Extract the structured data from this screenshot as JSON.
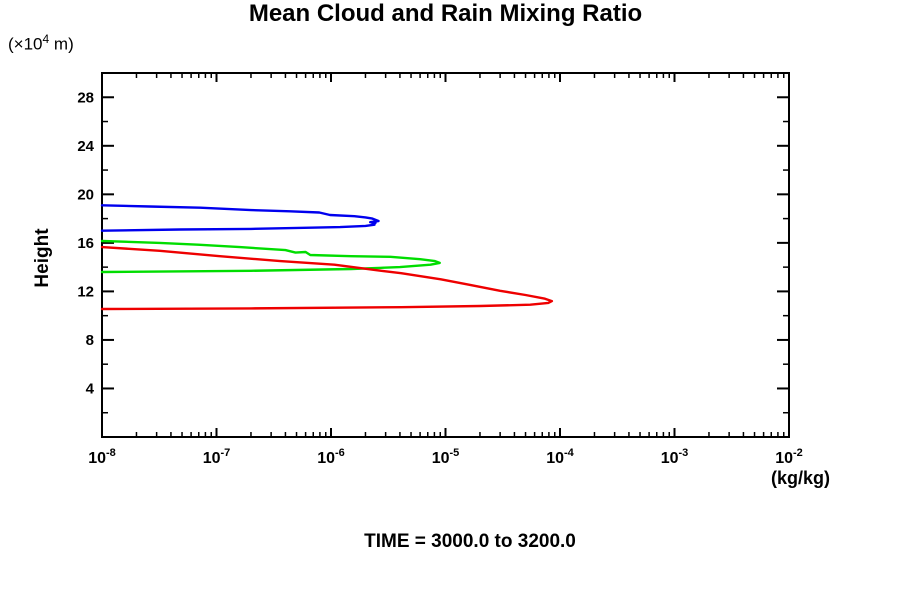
{
  "page": {
    "background": "#ffffff"
  },
  "title": "Mean Cloud and Rain Mixing Ratio",
  "labels": {
    "y_unit_prefix": "(×10",
    "y_unit_sup": "4",
    "y_unit_suffix": " m)",
    "y_axis_title": "Height",
    "x_unit": "(kg/kg)",
    "time_caption": "TIME = 3000.0 to 3200.0"
  },
  "chart_data": {
    "type": "line",
    "title": "Mean Cloud and Rain Mixing Ratio",
    "xlabel": "(kg/kg)",
    "ylabel": "Height (×10⁴ m)",
    "x_scale": "log",
    "x_range": [
      1e-08,
      0.01
    ],
    "x_tick_exponents": [
      -8,
      -7,
      -6,
      -5,
      -4,
      -3,
      -2
    ],
    "y_range": [
      0,
      30
    ],
    "y_major_ticks": [
      4,
      8,
      12,
      16,
      20,
      24,
      28
    ],
    "y_minor_ticks": [
      2,
      6,
      10,
      14,
      18,
      22,
      26
    ],
    "grid": false,
    "legend": "none",
    "frame_color": "#000000",
    "series": [
      {
        "name": "blue",
        "color": "#0000ee",
        "points": [
          [
            1e-08,
            19.1
          ],
          [
            2.6e-08,
            19.0
          ],
          [
            7.2e-08,
            18.9
          ],
          [
            2e-07,
            18.7
          ],
          [
            4.4e-07,
            18.6
          ],
          [
            7.9e-07,
            18.5
          ],
          [
            9.8e-07,
            18.3
          ],
          [
            1.6e-06,
            18.2
          ],
          [
            2e-06,
            18.1
          ],
          [
            2.3e-06,
            18.0
          ],
          [
            2.6e-06,
            17.8
          ],
          [
            2.2e-06,
            17.7
          ],
          [
            2.45e-06,
            17.65
          ],
          [
            2.3e-06,
            17.55
          ],
          [
            2.4e-06,
            17.5
          ],
          [
            2e-06,
            17.4
          ],
          [
            1.2e-06,
            17.3
          ],
          [
            6.6e-07,
            17.25
          ],
          [
            2e-07,
            17.15
          ],
          [
            4.8e-08,
            17.1
          ],
          [
            1e-08,
            17.0
          ]
        ]
      },
      {
        "name": "green",
        "color": "#00dd00",
        "points": [
          [
            1e-08,
            16.15
          ],
          [
            3.2e-08,
            16.0
          ],
          [
            6.9e-08,
            15.85
          ],
          [
            1.6e-07,
            15.65
          ],
          [
            4e-07,
            15.4
          ],
          [
            4.9e-07,
            15.2
          ],
          [
            6e-07,
            15.25
          ],
          [
            6.6e-07,
            15.0
          ],
          [
            1.5e-06,
            14.9
          ],
          [
            3.3e-06,
            14.85
          ],
          [
            6e-06,
            14.65
          ],
          [
            8.1e-06,
            14.5
          ],
          [
            8.9e-06,
            14.35
          ],
          [
            7.4e-06,
            14.2
          ],
          [
            4e-06,
            14.0
          ],
          [
            1.5e-06,
            13.85
          ],
          [
            2e-07,
            13.7
          ],
          [
            1e-08,
            13.6
          ]
        ]
      },
      {
        "name": "red",
        "color": "#ee0000",
        "points": [
          [
            1e-08,
            15.65
          ],
          [
            3.2e-08,
            15.35
          ],
          [
            1.07e-07,
            14.9
          ],
          [
            3.6e-07,
            14.5
          ],
          [
            1.07e-06,
            14.2
          ],
          [
            2.75e-06,
            13.7
          ],
          [
            4.1e-06,
            13.5
          ],
          [
            9.1e-06,
            13.0
          ],
          [
            1.6e-05,
            12.55
          ],
          [
            3e-05,
            12.05
          ],
          [
            5e-05,
            11.7
          ],
          [
            7.4e-05,
            11.4
          ],
          [
            8.5e-05,
            11.2
          ],
          [
            7.9e-05,
            11.05
          ],
          [
            5.5e-05,
            10.9
          ],
          [
            2e-05,
            10.8
          ],
          [
            4.1e-06,
            10.7
          ],
          [
            2e-07,
            10.6
          ],
          [
            1e-08,
            10.55
          ]
        ]
      }
    ]
  }
}
